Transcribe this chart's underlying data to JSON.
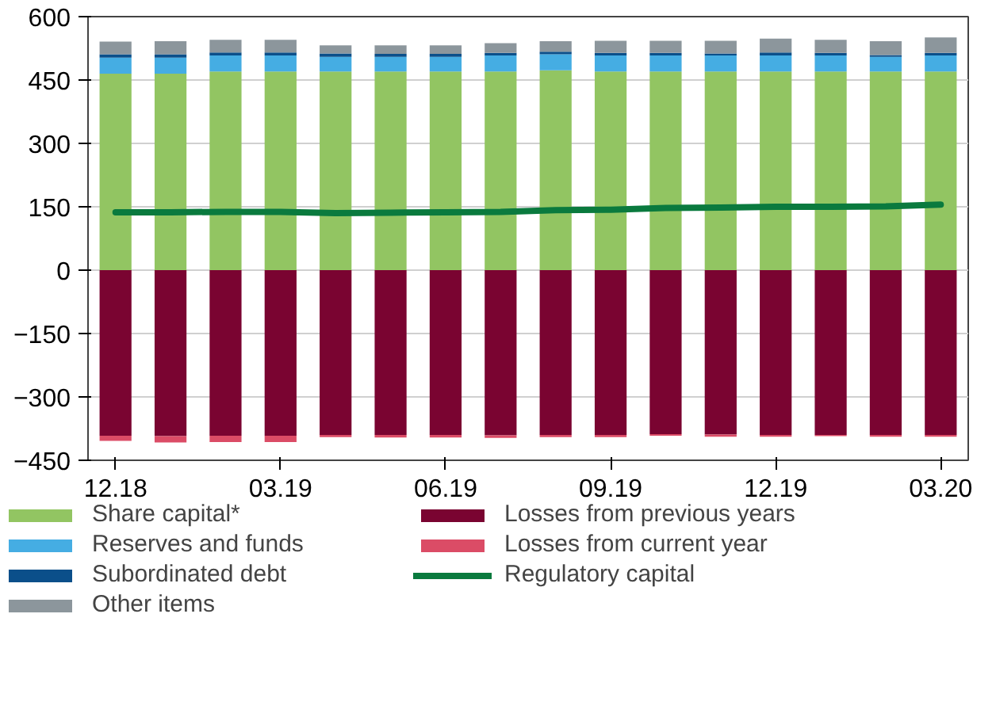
{
  "chart_data": {
    "type": "bar",
    "stacked": true,
    "categories": [
      "12.18",
      null,
      null,
      "03.19",
      null,
      null,
      "06.19",
      null,
      null,
      "09.19",
      null,
      null,
      "12.19",
      null,
      null,
      "03.20"
    ],
    "series": [
      {
        "name": "Share capital*",
        "color": "#92c562",
        "values": [
          465,
          465,
          470,
          470,
          470,
          470,
          470,
          470,
          473,
          470,
          470,
          470,
          470,
          470,
          470,
          470
        ]
      },
      {
        "name": "Reserves and funds",
        "color": "#45ade3",
        "values": [
          38,
          38,
          38,
          38,
          35,
          35,
          35,
          38,
          38,
          38,
          38,
          38,
          38,
          38,
          35,
          38
        ]
      },
      {
        "name": "Subordinated debt",
        "color": "#0b4f8a",
        "values": [
          8,
          8,
          7,
          7,
          8,
          7,
          7,
          6,
          6,
          6,
          6,
          5,
          7,
          6,
          4,
          6
        ]
      },
      {
        "name": "Other items",
        "color": "#8c969c",
        "values": [
          30,
          31,
          30,
          30,
          19,
          20,
          20,
          23,
          25,
          29,
          29,
          30,
          33,
          31,
          33,
          37
        ]
      },
      {
        "name": "Losses from previous years",
        "color": "#7a0431",
        "values": [
          -392,
          -393,
          -392,
          -392,
          -390,
          -390,
          -390,
          -391,
          -390,
          -390,
          -388,
          -389,
          -390,
          -390,
          -390,
          -390
        ]
      },
      {
        "name": "Losses from current year",
        "color": "#db4c66",
        "values": [
          -12,
          -15,
          -15,
          -15,
          -5,
          -6,
          -6,
          -6,
          -5,
          -5,
          -4,
          -5,
          -4,
          -3,
          -4,
          -4
        ]
      },
      {
        "name": "Regulatory capital",
        "color": "#0a7a3e",
        "type": "line",
        "values": [
          137,
          137,
          138,
          138,
          135,
          136,
          137,
          138,
          142,
          143,
          147,
          148,
          150,
          150,
          151,
          155
        ]
      }
    ],
    "ylim": [
      -450,
      600
    ],
    "yticks": [
      -450,
      -300,
      -150,
      0,
      150,
      300,
      450,
      600
    ],
    "grid": "y",
    "legend": "bottom"
  }
}
